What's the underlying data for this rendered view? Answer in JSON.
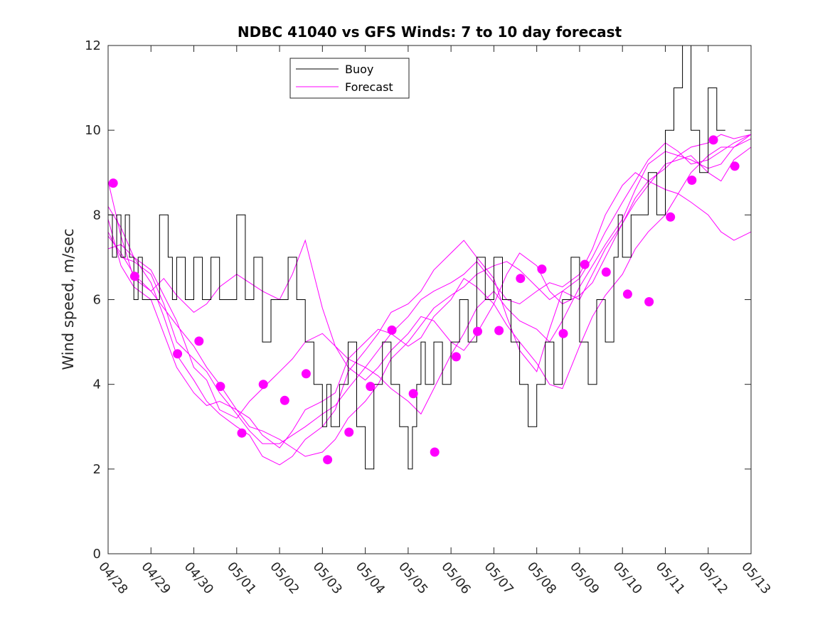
{
  "chart_data": {
    "type": "line",
    "title": "NDBC 41040 vs GFS Winds: 7 to 10 day forecast",
    "xlabel": "",
    "ylabel": "Wind speed, m/sec",
    "x_range_days": [
      0,
      15
    ],
    "ylim": [
      0,
      12
    ],
    "yticks": [
      0,
      2,
      4,
      6,
      8,
      10,
      12
    ],
    "xtick_labels": [
      "04/28",
      "04/29",
      "04/30",
      "05/01",
      "05/02",
      "05/03",
      "05/04",
      "05/05",
      "05/06",
      "05/07",
      "05/08",
      "05/09",
      "05/10",
      "05/11",
      "05/12",
      "05/13"
    ],
    "grid": false,
    "legend": {
      "position": "top-left-inside",
      "entries": [
        "Buoy",
        "Forecast"
      ]
    },
    "colors": {
      "buoy": "#000000",
      "forecast": "#ff00ff"
    },
    "buoy": {
      "name": "Buoy",
      "x_days": [
        0.0,
        0.1,
        0.2,
        0.3,
        0.4,
        0.5,
        0.6,
        0.7,
        0.8,
        0.9,
        1.0,
        1.2,
        1.4,
        1.5,
        1.6,
        1.8,
        2.0,
        2.2,
        2.4,
        2.6,
        2.8,
        3.0,
        3.2,
        3.4,
        3.6,
        3.8,
        4.0,
        4.2,
        4.4,
        4.6,
        4.8,
        5.0,
        5.1,
        5.2,
        5.4,
        5.6,
        5.8,
        6.0,
        6.2,
        6.4,
        6.6,
        6.8,
        7.0,
        7.1,
        7.2,
        7.3,
        7.4,
        7.6,
        7.8,
        8.0,
        8.2,
        8.4,
        8.6,
        8.8,
        8.9,
        9.0,
        9.2,
        9.4,
        9.6,
        9.8,
        10.0,
        10.2,
        10.4,
        10.6,
        10.8,
        11.0,
        11.2,
        11.4,
        11.6,
        11.8,
        11.9,
        12.0,
        12.2,
        12.4,
        12.6,
        12.8,
        13.0,
        13.2,
        13.4,
        13.6,
        13.8,
        14.0,
        14.2,
        14.4
      ],
      "values": [
        8,
        7,
        8,
        7,
        8,
        7,
        6,
        7,
        6,
        6,
        6,
        8,
        7,
        6,
        7,
        6,
        7,
        6,
        7,
        6,
        6,
        8,
        6,
        7,
        5,
        6,
        6,
        7,
        6,
        5,
        4,
        3,
        4,
        3,
        4,
        5,
        3,
        2,
        4,
        5,
        4,
        3,
        2,
        3,
        4,
        5,
        4,
        5,
        4,
        5,
        6,
        5,
        7,
        6,
        6,
        7,
        6,
        5,
        4,
        3,
        4,
        5,
        4,
        6,
        7,
        5,
        4,
        6,
        5,
        7,
        8,
        7,
        8,
        8,
        9,
        8,
        10,
        11,
        12,
        10,
        9,
        11,
        10,
        10
      ],
      "values_note": ""
    },
    "forecast_runs": [
      {
        "name": "Forecast",
        "x_days": [
          0.0,
          0.3,
          0.6,
          1.0,
          1.3,
          1.6,
          2.0,
          2.3,
          2.6,
          3.0,
          3.3,
          3.6,
          4.0,
          4.3,
          4.6,
          5.0,
          5.3,
          5.6,
          6.0,
          6.3,
          6.6,
          7.0,
          7.3,
          7.6,
          8.0,
          8.3,
          8.6,
          9.0,
          9.3,
          9.6,
          10.0,
          10.3,
          10.6,
          11.0,
          11.3,
          11.6,
          12.0,
          12.3,
          12.6,
          13.0,
          13.3,
          13.6,
          14.0,
          14.3,
          14.6,
          15.0
        ],
        "values": [
          8.8,
          7.5,
          6.5,
          6.2,
          5.8,
          5.4,
          4.9,
          4.4,
          4.0,
          3.4,
          3.0,
          2.9,
          2.7,
          2.5,
          2.3,
          2.4,
          2.7,
          3.2,
          3.6,
          4.0,
          4.6,
          5.0,
          5.4,
          5.8,
          6.1,
          6.3,
          6.6,
          6.8,
          6.9,
          6.7,
          6.3,
          6.0,
          6.2,
          6.5,
          7.0,
          7.6,
          8.3,
          8.8,
          9.3,
          9.7,
          9.5,
          9.2,
          9.3,
          9.5,
          9.7,
          9.9
        ]
      },
      {
        "name": "Forecast",
        "x_days": [
          0.0,
          0.3,
          0.6,
          1.0,
          1.3,
          1.6,
          2.0,
          2.3,
          2.6,
          3.0,
          3.3,
          3.6,
          4.0,
          4.3,
          4.6,
          5.0,
          5.3,
          5.6,
          6.0,
          6.3,
          6.6,
          7.0,
          7.3,
          7.6,
          8.0,
          8.3,
          8.6,
          9.0,
          9.3,
          9.6,
          10.0,
          10.3,
          10.6,
          11.0,
          11.3,
          11.6,
          12.0,
          12.3,
          12.6,
          13.0,
          13.3,
          13.6,
          14.0,
          14.3,
          14.6,
          15.0
        ],
        "values": [
          7.6,
          7.0,
          6.9,
          6.6,
          5.9,
          5.0,
          4.6,
          4.3,
          3.8,
          3.3,
          2.9,
          2.6,
          2.6,
          2.8,
          3.0,
          3.3,
          3.5,
          3.9,
          4.4,
          4.8,
          5.2,
          5.6,
          6.0,
          6.2,
          6.4,
          6.6,
          6.9,
          6.4,
          6.0,
          5.9,
          6.2,
          6.4,
          6.3,
          6.6,
          7.2,
          8.0,
          8.7,
          9.0,
          8.8,
          8.6,
          8.5,
          8.3,
          8.0,
          7.6,
          7.4,
          7.6
        ]
      },
      {
        "name": "Forecast",
        "x_days": [
          0.0,
          0.3,
          0.6,
          1.0,
          1.3,
          1.6,
          2.0,
          2.3,
          2.6,
          3.0,
          3.3,
          3.6,
          4.0,
          4.3,
          4.6,
          5.0,
          5.3,
          5.6,
          6.0,
          6.3,
          6.6,
          7.0,
          7.3,
          7.6,
          8.0,
          8.3,
          8.6,
          9.0,
          9.3,
          9.6,
          10.0,
          10.3,
          10.6,
          11.0,
          11.3,
          11.6,
          12.0,
          12.3,
          12.6,
          13.0,
          13.3,
          13.6,
          14.0,
          14.3,
          14.6,
          15.0
        ],
        "values": [
          7.2,
          7.3,
          7.0,
          6.4,
          5.6,
          4.7,
          4.1,
          3.6,
          3.3,
          3.0,
          2.8,
          2.3,
          2.1,
          2.3,
          2.7,
          3.0,
          3.4,
          4.3,
          4.8,
          5.2,
          5.7,
          5.9,
          6.2,
          6.7,
          7.1,
          7.4,
          7.0,
          6.5,
          5.6,
          4.8,
          4.3,
          5.3,
          6.2,
          6.0,
          6.6,
          7.2,
          7.8,
          8.3,
          8.7,
          9.2,
          9.3,
          9.4,
          9.0,
          8.8,
          9.3,
          9.6
        ]
      },
      {
        "name": "Forecast",
        "x_days": [
          0.0,
          0.3,
          0.6,
          1.0,
          1.3,
          1.6,
          2.0,
          2.3,
          2.6,
          3.0,
          3.3,
          3.6,
          4.0,
          4.3,
          4.6,
          5.0,
          5.3,
          5.6,
          6.0,
          6.3,
          6.6,
          7.0,
          7.3,
          7.6,
          8.0,
          8.3,
          8.6,
          9.0,
          9.3,
          9.6,
          10.0,
          10.3,
          10.6,
          11.0,
          11.3,
          11.6,
          12.0,
          12.3,
          12.6,
          13.0,
          13.3,
          13.6,
          14.0,
          14.3,
          14.6,
          15.0
        ],
        "values": [
          7.9,
          6.8,
          6.3,
          6.0,
          5.2,
          4.4,
          3.8,
          3.5,
          3.6,
          3.4,
          3.2,
          2.8,
          2.5,
          2.9,
          3.4,
          3.6,
          3.8,
          4.6,
          5.0,
          5.3,
          5.2,
          4.9,
          5.1,
          5.6,
          6.0,
          6.5,
          6.3,
          5.9,
          5.4,
          5.0,
          4.5,
          4.0,
          3.9,
          4.9,
          5.6,
          6.1,
          6.6,
          7.2,
          7.6,
          8.0,
          8.5,
          9.0,
          9.4,
          9.6,
          9.6,
          9.8
        ]
      },
      {
        "name": "Forecast",
        "x_days": [
          0.0,
          0.3,
          0.6,
          1.0,
          1.3,
          1.6,
          2.0,
          2.3,
          2.6,
          3.0,
          3.3,
          3.6,
          4.0,
          4.3,
          4.6,
          5.0,
          5.3,
          5.6,
          6.0,
          6.3,
          6.6,
          7.0,
          7.3,
          7.6,
          8.0,
          8.3,
          8.6,
          9.0,
          9.3,
          9.6,
          10.0,
          10.3,
          10.6,
          11.0,
          11.3,
          11.6,
          12.0,
          12.3,
          12.6,
          13.0,
          13.3,
          13.6,
          14.0,
          14.3,
          14.6,
          15.0
        ],
        "values": [
          8.2,
          7.7,
          7.0,
          6.7,
          6.1,
          5.5,
          4.4,
          4.1,
          3.4,
          3.2,
          3.6,
          3.9,
          4.3,
          4.6,
          5.0,
          5.2,
          4.9,
          4.6,
          4.4,
          4.2,
          3.9,
          3.6,
          3.3,
          3.9,
          4.7,
          5.2,
          5.8,
          6.2,
          5.8,
          5.5,
          5.3,
          5.0,
          5.5,
          6.3,
          6.8,
          7.3,
          7.9,
          8.6,
          9.2,
          9.5,
          9.4,
          9.3,
          9.1,
          9.2,
          9.6,
          9.9
        ]
      },
      {
        "name": "Forecast",
        "x_days": [
          0.0,
          0.3,
          0.6,
          1.0,
          1.3,
          1.6,
          2.0,
          2.3,
          2.6,
          3.0,
          3.3,
          3.6,
          4.0,
          4.3,
          4.6,
          5.0,
          5.3,
          5.6,
          6.0,
          6.3,
          6.6,
          7.0,
          7.3,
          7.6,
          8.0,
          8.3,
          8.6,
          9.0,
          9.3,
          9.6,
          10.0,
          10.3,
          10.6,
          11.0,
          11.3,
          11.6,
          12.0,
          12.3,
          12.6,
          13.0,
          13.3,
          13.6,
          14.0,
          14.3,
          14.6,
          15.0
        ],
        "values": [
          7.5,
          7.1,
          6.6,
          6.2,
          6.5,
          6.1,
          5.7,
          5.9,
          6.3,
          6.6,
          6.4,
          6.2,
          6.0,
          6.6,
          7.4,
          5.8,
          4.9,
          4.4,
          4.1,
          4.4,
          4.8,
          5.2,
          5.6,
          5.5,
          5.0,
          4.8,
          5.2,
          5.9,
          6.6,
          7.1,
          6.8,
          6.2,
          5.9,
          6.1,
          6.4,
          7.0,
          7.8,
          8.4,
          8.8,
          9.1,
          9.4,
          9.6,
          9.7,
          9.9,
          9.8,
          9.9
        ]
      }
    ],
    "forecast_markers": {
      "name": "Forecast",
      "x_days": [
        0.12,
        0.62,
        1.62,
        2.12,
        2.62,
        3.12,
        3.62,
        4.12,
        4.62,
        5.12,
        5.62,
        6.12,
        6.62,
        7.12,
        7.62,
        8.12,
        8.62,
        9.12,
        9.62,
        10.12,
        10.62,
        11.12,
        11.62,
        12.12,
        12.62,
        13.12,
        13.62,
        14.12,
        14.62
      ],
      "values": [
        8.75,
        6.55,
        4.72,
        5.02,
        3.95,
        2.85,
        4.0,
        3.62,
        4.25,
        2.22,
        2.87,
        3.95,
        5.28,
        3.78,
        2.4,
        4.65,
        5.25,
        5.27,
        6.5,
        6.72,
        5.2,
        6.83,
        6.65,
        6.13,
        5.95,
        7.95,
        8.82,
        9.77,
        9.15
      ]
    }
  }
}
